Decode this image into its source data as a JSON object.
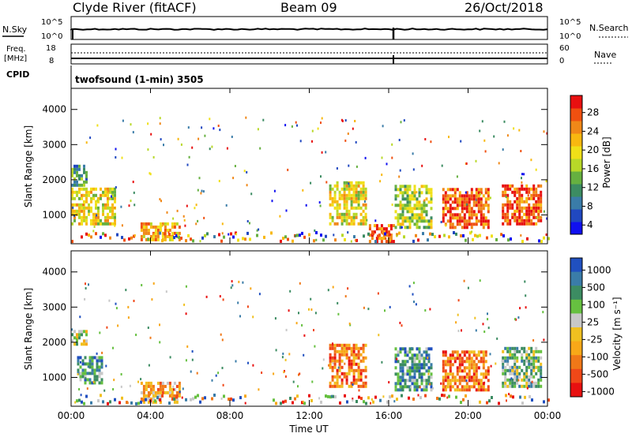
{
  "header": {
    "station": "Clyde River (fitACF)",
    "beam": "Beam 09",
    "date": "26/Oct/2018"
  },
  "top_panels": {
    "nsky_label": "N.Sky",
    "nsearch_label": "N.Search",
    "noise_ticks": [
      "10^5",
      "10^0"
    ],
    "freq_label_1": "Freq.",
    "freq_label_2": "[MHz]",
    "freq_ticks": [
      "18",
      "8"
    ],
    "nave_label": "Nave",
    "nave_ticks": [
      "60",
      "0"
    ],
    "cpid_label": "CPID",
    "cpid_text": "twofsound (1-min) 3505"
  },
  "chart_data": [
    {
      "type": "heatmap",
      "name": "power",
      "ylabel": "Slant Range [km]",
      "xlabel": "",
      "x_ticks": [
        "00:00",
        "04:00",
        "08:00",
        "12:00",
        "16:00",
        "20:00",
        "00:00"
      ],
      "y_ticks": [
        1000,
        2000,
        3000,
        4000
      ],
      "ylim": [
        180,
        4600
      ],
      "colorbar": {
        "label": "Power [dB]",
        "ticks": [
          "4",
          "8",
          "12",
          "16",
          "20",
          "24",
          "28"
        ],
        "colors": [
          "#1010f0",
          "#2048c0",
          "#3a7ca8",
          "#3c8c62",
          "#66b040",
          "#b8d828",
          "#f0e018",
          "#f8b810",
          "#f08818",
          "#f05010",
          "#e81010"
        ]
      },
      "echo_regions": [
        {
          "t_start": 0.0,
          "t_end": 2.2,
          "r_min": 700,
          "r_max": 1700,
          "level": 6
        },
        {
          "t_start": 0.0,
          "t_end": 0.8,
          "r_min": 1800,
          "r_max": 2400,
          "level": 3
        },
        {
          "t_start": 3.5,
          "t_end": 5.5,
          "r_min": 250,
          "r_max": 700,
          "level": 7
        },
        {
          "t_start": 13.0,
          "t_end": 14.8,
          "r_min": 700,
          "r_max": 1900,
          "level": 6
        },
        {
          "t_start": 15.0,
          "t_end": 16.3,
          "r_min": 200,
          "r_max": 700,
          "level": 9
        },
        {
          "t_start": 16.3,
          "t_end": 18.2,
          "r_min": 600,
          "r_max": 1800,
          "level": 5
        },
        {
          "t_start": 18.7,
          "t_end": 21.0,
          "r_min": 600,
          "r_max": 1700,
          "level": 9
        },
        {
          "t_start": 21.7,
          "t_end": 23.7,
          "r_min": 700,
          "r_max": 1800,
          "level": 9
        }
      ]
    },
    {
      "type": "heatmap",
      "name": "velocity",
      "ylabel": "Slant Range [km]",
      "xlabel": "Time UT",
      "x_ticks": [
        "00:00",
        "04:00",
        "08:00",
        "12:00",
        "16:00",
        "20:00",
        "00:00"
      ],
      "y_ticks": [
        1000,
        2000,
        3000,
        4000
      ],
      "ylim": [
        180,
        4600
      ],
      "colorbar": {
        "label": "Velocity [m s⁻¹]",
        "ticks": [
          "1000",
          "500",
          "100",
          "25",
          "-25",
          "-100",
          "-500",
          "-1000"
        ],
        "colors": [
          "#2050c0",
          "#3a7ca8",
          "#3c8c62",
          "#66c040",
          "#c8c8c8",
          "#f0c020",
          "#f8a818",
          "#f07818",
          "#f04818",
          "#e81010"
        ]
      },
      "echo_regions": [
        {
          "t_start": 0.3,
          "t_end": 1.6,
          "r_min": 800,
          "r_max": 1600,
          "level": 2
        },
        {
          "t_start": 0.0,
          "t_end": 0.8,
          "r_min": 1900,
          "r_max": 2300,
          "level": 4
        },
        {
          "t_start": 3.5,
          "t_end": 5.5,
          "r_min": 250,
          "r_max": 800,
          "level": 6
        },
        {
          "t_start": 13.0,
          "t_end": 14.8,
          "r_min": 700,
          "r_max": 1900,
          "level": 7
        },
        {
          "t_start": 16.3,
          "t_end": 18.2,
          "r_min": 600,
          "r_max": 1800,
          "level": 2
        },
        {
          "t_start": 18.7,
          "t_end": 21.0,
          "r_min": 600,
          "r_max": 1700,
          "level": 7
        },
        {
          "t_start": 21.7,
          "t_end": 23.7,
          "r_min": 700,
          "r_max": 1800,
          "level": 3
        }
      ]
    }
  ]
}
